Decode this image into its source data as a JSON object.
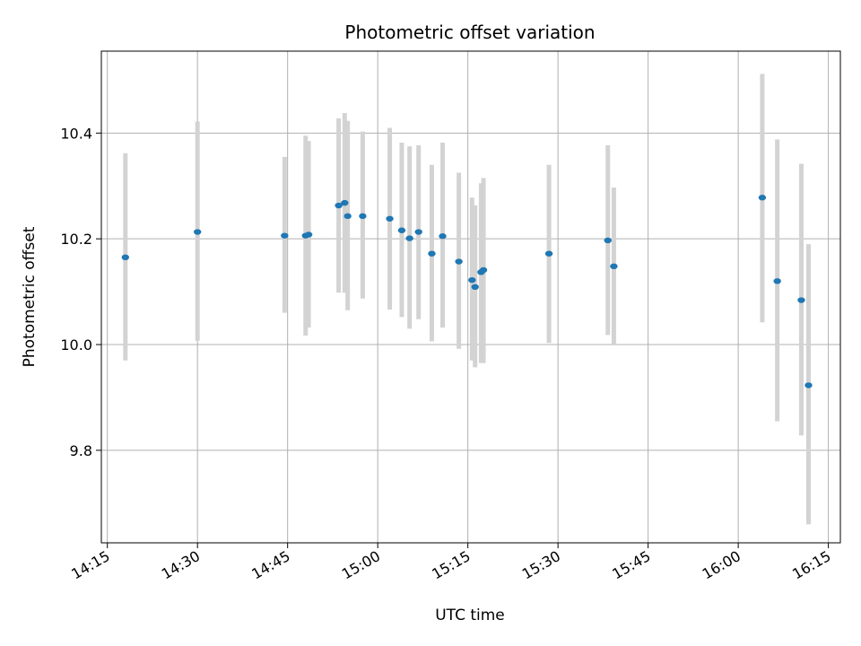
{
  "chart_data": {
    "type": "scatter",
    "title": "Photometric offset variation",
    "xlabel": "UTC time",
    "ylabel": "Photometric offset",
    "x_ticks": [
      "14:15",
      "14:30",
      "14:45",
      "15:00",
      "15:15",
      "15:30",
      "15:45",
      "16:00",
      "16:15"
    ],
    "y_ticks": [
      "9.8",
      "10.0",
      "10.2",
      "10.4"
    ],
    "xlim": [
      "14:14",
      "16:17"
    ],
    "ylim": [
      9.625,
      10.555
    ],
    "grid": true,
    "point_color": "#1f77b4",
    "errorbar_color": "#d3d3d3",
    "points": [
      {
        "time": "14:18",
        "value": 10.165,
        "low": 9.97,
        "high": 10.362
      },
      {
        "time": "14:30",
        "value": 10.213,
        "low": 10.007,
        "high": 10.422
      },
      {
        "time": "14:44.5",
        "value": 10.206,
        "low": 10.06,
        "high": 10.355
      },
      {
        "time": "14:48",
        "value": 10.206,
        "low": 10.017,
        "high": 10.395
      },
      {
        "time": "14:48.5",
        "value": 10.208,
        "low": 10.032,
        "high": 10.385
      },
      {
        "time": "14:53.5",
        "value": 10.263,
        "low": 10.098,
        "high": 10.428
      },
      {
        "time": "14:54.5",
        "value": 10.268,
        "low": 10.098,
        "high": 10.438
      },
      {
        "time": "14:55",
        "value": 10.243,
        "low": 10.065,
        "high": 10.423
      },
      {
        "time": "14:57.5",
        "value": 10.243,
        "low": 10.087,
        "high": 10.403
      },
      {
        "time": "15:02",
        "value": 10.238,
        "low": 10.066,
        "high": 10.41
      },
      {
        "time": "15:04",
        "value": 10.216,
        "low": 10.052,
        "high": 10.382
      },
      {
        "time": "15:05.3",
        "value": 10.201,
        "low": 10.03,
        "high": 10.375
      },
      {
        "time": "15:06.8",
        "value": 10.213,
        "low": 10.048,
        "high": 10.377
      },
      {
        "time": "15:09",
        "value": 10.172,
        "low": 10.006,
        "high": 10.34
      },
      {
        "time": "15:10.8",
        "value": 10.205,
        "low": 10.032,
        "high": 10.382
      },
      {
        "time": "15:13.5",
        "value": 10.157,
        "low": 9.992,
        "high": 10.325
      },
      {
        "time": "15:15.7",
        "value": 10.122,
        "low": 9.97,
        "high": 10.278
      },
      {
        "time": "15:16.2",
        "value": 10.109,
        "low": 9.957,
        "high": 10.263
      },
      {
        "time": "15:17.2",
        "value": 10.137,
        "low": 9.965,
        "high": 10.305
      },
      {
        "time": "15:17.6",
        "value": 10.141,
        "low": 9.965,
        "high": 10.315
      },
      {
        "time": "15:28.5",
        "value": 10.172,
        "low": 10.003,
        "high": 10.34
      },
      {
        "time": "15:38.3",
        "value": 10.197,
        "low": 10.018,
        "high": 10.377
      },
      {
        "time": "15:39.3",
        "value": 10.148,
        "low": 10.0,
        "high": 10.297
      },
      {
        "time": "16:04",
        "value": 10.278,
        "low": 10.042,
        "high": 10.512
      },
      {
        "time": "16:06.5",
        "value": 10.12,
        "low": 9.855,
        "high": 10.388
      },
      {
        "time": "16:10.5",
        "value": 10.084,
        "low": 9.828,
        "high": 10.342
      },
      {
        "time": "16:11.7",
        "value": 9.923,
        "low": 9.66,
        "high": 10.19
      }
    ]
  }
}
